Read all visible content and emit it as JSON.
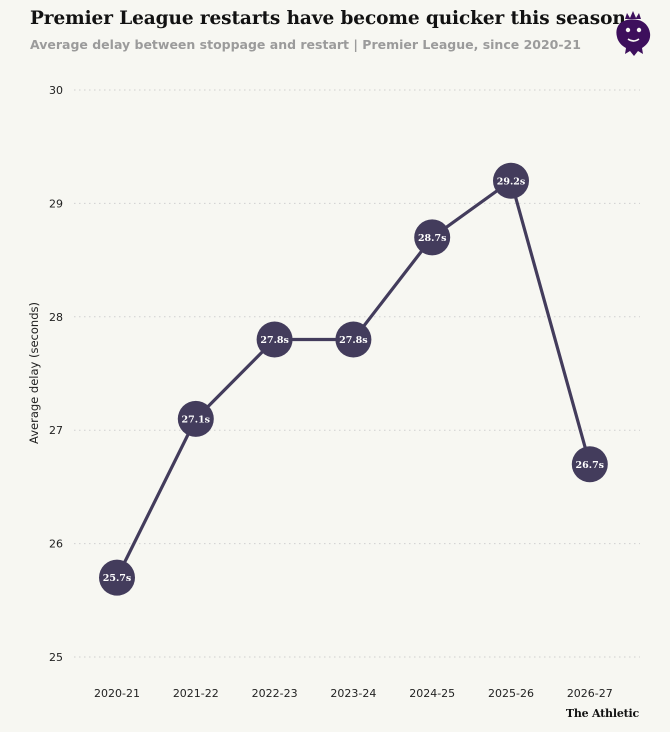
{
  "header": {
    "title": "Premier League restarts have become quicker this season",
    "subtitle": "Average delay between stoppage and restart | Premier League, since 2020-21",
    "logo_icon": "premier-league-lion-icon"
  },
  "credit": "The Athletic",
  "colors": {
    "line": "#433c5c",
    "marker": "#433c5c",
    "marker_text": "#ffffff",
    "logo": "#3d0f5c",
    "grid": "#cfcfcf"
  },
  "chart_data": {
    "type": "line",
    "title": "",
    "xlabel": "",
    "ylabel": "Average delay (seconds)",
    "categories": [
      "2020-21",
      "2021-22",
      "2022-23",
      "2023-24",
      "2024-25",
      "2025-26",
      "2026-27"
    ],
    "values": [
      25.7,
      27.1,
      27.8,
      27.8,
      28.7,
      29.2,
      26.7
    ],
    "data_labels": [
      "25.7s",
      "27.1s",
      "27.8s",
      "27.8s",
      "28.7s",
      "29.2s",
      "26.7s"
    ],
    "ylim": [
      25,
      30
    ],
    "yticks": [
      25,
      26,
      27,
      28,
      29,
      30
    ],
    "grid": "horizontal dotted",
    "legend": "none"
  }
}
